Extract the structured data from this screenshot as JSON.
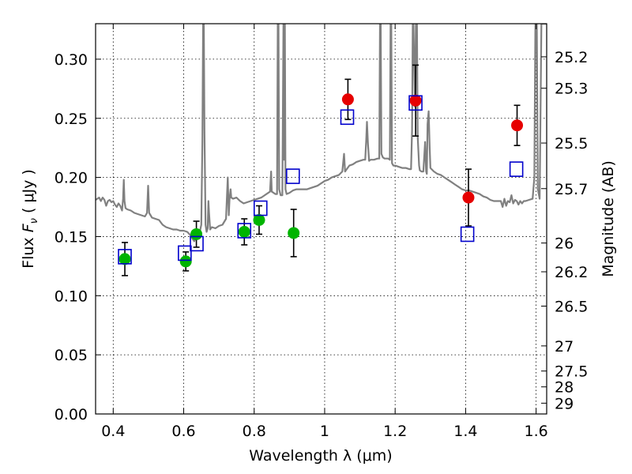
{
  "chart_data": {
    "type": "scatter",
    "xlabel": "Wavelength  λ (μm)",
    "ylabel": "Flux  F_ν  ( μJy )",
    "ylabel_parts": {
      "pre": "Flux  ",
      "sym": "F",
      "sub": "ν",
      "post": "  ( μJy )"
    },
    "y2label": "Magnitude (AB)",
    "xlim": [
      0.35,
      1.63
    ],
    "ylim": [
      0.0,
      0.33
    ],
    "grid": true,
    "x_ticks": [
      0.4,
      0.6,
      0.8,
      1.0,
      1.2,
      1.4,
      1.6
    ],
    "x_tick_labels": [
      "0.4",
      "0.6",
      "0.8",
      "1",
      "1.2",
      "1.4",
      "1.6"
    ],
    "y_ticks": [
      0.0,
      0.05,
      0.1,
      0.15,
      0.2,
      0.25,
      0.3
    ],
    "y_tick_labels": [
      "0.00",
      "0.05",
      "0.10",
      "0.15",
      "0.20",
      "0.25",
      "0.30"
    ],
    "mag_ticks": [
      25.2,
      25.3,
      25.5,
      25.7,
      26,
      26.2,
      26.5,
      27,
      27.5,
      28,
      29
    ],
    "mag_tick_labels": [
      "25.2",
      "25.3",
      "25.5",
      "25.7",
      "26",
      "26.2",
      "26.5",
      "27",
      "27.5",
      "28",
      "29"
    ],
    "colors": {
      "template": "#808080",
      "optical_points": "#00b400",
      "nir_points": "#e60000",
      "model_boxes": "#0000cc",
      "errorbar": "#000000"
    },
    "series": [
      {
        "kind": "points_green",
        "points": [
          {
            "x": 0.433,
            "y": 0.131,
            "err": 0.014
          },
          {
            "x": 0.606,
            "y": 0.129,
            "err": 0.008
          },
          {
            "x": 0.636,
            "y": 0.152,
            "err": 0.011
          },
          {
            "x": 0.772,
            "y": 0.154,
            "err": 0.011
          },
          {
            "x": 0.814,
            "y": 0.164,
            "err": 0.012
          },
          {
            "x": 0.912,
            "y": 0.153,
            "err": 0.02
          }
        ]
      },
      {
        "kind": "points_red",
        "points": [
          {
            "x": 1.066,
            "y": 0.266,
            "err": 0.017
          },
          {
            "x": 1.258,
            "y": 0.265,
            "err": 0.03
          },
          {
            "x": 1.408,
            "y": 0.183,
            "err": 0.024
          },
          {
            "x": 1.546,
            "y": 0.244,
            "err": 0.017
          }
        ]
      },
      {
        "kind": "boxes",
        "points": [
          {
            "x": 0.433,
            "y": 0.133
          },
          {
            "x": 0.603,
            "y": 0.136
          },
          {
            "x": 0.637,
            "y": 0.144
          },
          {
            "x": 0.772,
            "y": 0.155
          },
          {
            "x": 0.818,
            "y": 0.174
          },
          {
            "x": 0.91,
            "y": 0.201
          },
          {
            "x": 1.064,
            "y": 0.251
          },
          {
            "x": 1.258,
            "y": 0.263
          },
          {
            "x": 1.405,
            "y": 0.152
          },
          {
            "x": 1.544,
            "y": 0.207
          }
        ]
      },
      {
        "kind": "template",
        "points": [
          [
            0.35,
            0.181
          ],
          [
            0.36,
            0.183
          ],
          [
            0.365,
            0.18
          ],
          [
            0.37,
            0.183
          ],
          [
            0.375,
            0.181
          ],
          [
            0.38,
            0.176
          ],
          [
            0.385,
            0.18
          ],
          [
            0.39,
            0.181
          ],
          [
            0.395,
            0.179
          ],
          [
            0.4,
            0.18
          ],
          [
            0.405,
            0.177
          ],
          [
            0.41,
            0.175
          ],
          [
            0.415,
            0.178
          ],
          [
            0.42,
            0.176
          ],
          [
            0.425,
            0.172
          ],
          [
            0.428,
            0.182
          ],
          [
            0.43,
            0.198
          ],
          [
            0.432,
            0.18
          ],
          [
            0.435,
            0.174
          ],
          [
            0.44,
            0.173
          ],
          [
            0.45,
            0.172
          ],
          [
            0.46,
            0.17
          ],
          [
            0.47,
            0.169
          ],
          [
            0.48,
            0.168
          ],
          [
            0.49,
            0.167
          ],
          [
            0.496,
            0.17
          ],
          [
            0.499,
            0.193
          ],
          [
            0.502,
            0.17
          ],
          [
            0.51,
            0.166
          ],
          [
            0.52,
            0.165
          ],
          [
            0.53,
            0.164
          ],
          [
            0.54,
            0.16
          ],
          [
            0.55,
            0.158
          ],
          [
            0.56,
            0.157
          ],
          [
            0.57,
            0.156
          ],
          [
            0.58,
            0.156
          ],
          [
            0.59,
            0.155
          ],
          [
            0.6,
            0.155
          ],
          [
            0.61,
            0.154
          ],
          [
            0.62,
            0.151
          ],
          [
            0.625,
            0.148
          ],
          [
            0.63,
            0.146
          ],
          [
            0.635,
            0.15
          ],
          [
            0.64,
            0.152
          ],
          [
            0.645,
            0.153
          ],
          [
            0.65,
            0.16
          ],
          [
            0.653,
            0.23
          ],
          [
            0.655,
            0.33
          ],
          [
            0.657,
            0.33
          ],
          [
            0.659,
            0.24
          ],
          [
            0.662,
            0.16
          ],
          [
            0.665,
            0.154
          ],
          [
            0.668,
            0.157
          ],
          [
            0.67,
            0.18
          ],
          [
            0.672,
            0.17
          ],
          [
            0.675,
            0.156
          ],
          [
            0.68,
            0.158
          ],
          [
            0.69,
            0.157
          ],
          [
            0.7,
            0.159
          ],
          [
            0.71,
            0.16
          ],
          [
            0.72,
            0.165
          ],
          [
            0.725,
            0.2
          ],
          [
            0.728,
            0.168
          ],
          [
            0.73,
            0.181
          ],
          [
            0.733,
            0.19
          ],
          [
            0.735,
            0.183
          ],
          [
            0.74,
            0.182
          ],
          [
            0.75,
            0.183
          ],
          [
            0.76,
            0.18
          ],
          [
            0.77,
            0.178
          ],
          [
            0.78,
            0.179
          ],
          [
            0.79,
            0.18
          ],
          [
            0.8,
            0.181
          ],
          [
            0.81,
            0.182
          ],
          [
            0.82,
            0.183
          ],
          [
            0.83,
            0.185
          ],
          [
            0.84,
            0.187
          ],
          [
            0.845,
            0.188
          ],
          [
            0.848,
            0.205
          ],
          [
            0.85,
            0.188
          ],
          [
            0.855,
            0.187
          ],
          [
            0.86,
            0.186
          ],
          [
            0.865,
            0.186
          ],
          [
            0.867,
            0.33
          ],
          [
            0.869,
            0.33
          ],
          [
            0.871,
            0.19
          ],
          [
            0.875,
            0.185
          ],
          [
            0.88,
            0.185
          ],
          [
            0.883,
            0.33
          ],
          [
            0.885,
            0.215
          ],
          [
            0.887,
            0.33
          ],
          [
            0.889,
            0.19
          ],
          [
            0.892,
            0.186
          ],
          [
            0.9,
            0.187
          ],
          [
            0.91,
            0.189
          ],
          [
            0.92,
            0.19
          ],
          [
            0.93,
            0.19
          ],
          [
            0.94,
            0.19
          ],
          [
            0.95,
            0.19
          ],
          [
            0.96,
            0.191
          ],
          [
            0.97,
            0.192
          ],
          [
            0.98,
            0.193
          ],
          [
            0.99,
            0.195
          ],
          [
            1.0,
            0.197
          ],
          [
            1.01,
            0.198
          ],
          [
            1.02,
            0.2
          ],
          [
            1.03,
            0.201
          ],
          [
            1.04,
            0.202
          ],
          [
            1.05,
            0.205
          ],
          [
            1.055,
            0.22
          ],
          [
            1.058,
            0.205
          ],
          [
            1.065,
            0.208
          ],
          [
            1.07,
            0.21
          ],
          [
            1.08,
            0.211
          ],
          [
            1.09,
            0.213
          ],
          [
            1.1,
            0.214
          ],
          [
            1.11,
            0.215
          ],
          [
            1.115,
            0.215
          ],
          [
            1.118,
            0.232
          ],
          [
            1.12,
            0.247
          ],
          [
            1.123,
            0.228
          ],
          [
            1.126,
            0.214
          ],
          [
            1.13,
            0.215
          ],
          [
            1.14,
            0.215
          ],
          [
            1.15,
            0.216
          ],
          [
            1.155,
            0.216
          ],
          [
            1.157,
            0.33
          ],
          [
            1.159,
            0.33
          ],
          [
            1.161,
            0.22
          ],
          [
            1.165,
            0.217
          ],
          [
            1.17,
            0.216
          ],
          [
            1.18,
            0.216
          ],
          [
            1.185,
            0.215
          ],
          [
            1.187,
            0.33
          ],
          [
            1.189,
            0.33
          ],
          [
            1.191,
            0.212
          ],
          [
            1.195,
            0.21
          ],
          [
            1.2,
            0.21
          ],
          [
            1.21,
            0.209
          ],
          [
            1.22,
            0.208
          ],
          [
            1.23,
            0.208
          ],
          [
            1.24,
            0.207
          ],
          [
            1.245,
            0.207
          ],
          [
            1.248,
            0.24
          ],
          [
            1.25,
            0.33
          ],
          [
            1.252,
            0.33
          ],
          [
            1.256,
            0.26
          ],
          [
            1.259,
            0.33
          ],
          [
            1.262,
            0.33
          ],
          [
            1.264,
            0.235
          ],
          [
            1.268,
            0.21
          ],
          [
            1.27,
            0.206
          ],
          [
            1.275,
            0.205
          ],
          [
            1.28,
            0.205
          ],
          [
            1.285,
            0.23
          ],
          [
            1.288,
            0.205
          ],
          [
            1.29,
            0.203
          ],
          [
            1.292,
            0.245
          ],
          [
            1.295,
            0.256
          ],
          [
            1.298,
            0.225
          ],
          [
            1.3,
            0.208
          ],
          [
            1.31,
            0.205
          ],
          [
            1.32,
            0.203
          ],
          [
            1.33,
            0.202
          ],
          [
            1.34,
            0.2
          ],
          [
            1.35,
            0.198
          ],
          [
            1.36,
            0.196
          ],
          [
            1.37,
            0.194
          ],
          [
            1.38,
            0.192
          ],
          [
            1.39,
            0.19
          ],
          [
            1.4,
            0.189
          ],
          [
            1.41,
            0.189
          ],
          [
            1.42,
            0.188
          ],
          [
            1.43,
            0.187
          ],
          [
            1.44,
            0.186
          ],
          [
            1.45,
            0.184
          ],
          [
            1.46,
            0.183
          ],
          [
            1.47,
            0.181
          ],
          [
            1.48,
            0.18
          ],
          [
            1.49,
            0.18
          ],
          [
            1.5,
            0.18
          ],
          [
            1.505,
            0.175
          ],
          [
            1.51,
            0.182
          ],
          [
            1.515,
            0.176
          ],
          [
            1.52,
            0.18
          ],
          [
            1.525,
            0.179
          ],
          [
            1.53,
            0.185
          ],
          [
            1.535,
            0.178
          ],
          [
            1.54,
            0.181
          ],
          [
            1.545,
            0.18
          ],
          [
            1.55,
            0.177
          ],
          [
            1.555,
            0.18
          ],
          [
            1.56,
            0.178
          ],
          [
            1.565,
            0.18
          ],
          [
            1.57,
            0.18
          ],
          [
            1.58,
            0.181
          ],
          [
            1.59,
            0.182
          ],
          [
            1.595,
            0.2
          ],
          [
            1.598,
            0.33
          ],
          [
            1.602,
            0.33
          ],
          [
            1.605,
            0.19
          ],
          [
            1.61,
            0.182
          ],
          [
            1.612,
            0.24
          ],
          [
            1.615,
            0.33
          ],
          [
            1.63,
            0.33
          ]
        ]
      }
    ]
  }
}
